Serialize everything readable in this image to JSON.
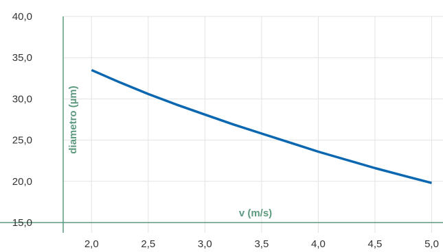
{
  "chart_data": {
    "type": "line",
    "xlabel": "v (m/s)",
    "ylabel": "diametro (µm)",
    "xlim": [
      1.75,
      5.1
    ],
    "ylim": [
      15,
      40
    ],
    "x_ticks": [
      "2,0",
      "2,5",
      "3,0",
      "3,5",
      "4,0",
      "4,5",
      "5,0"
    ],
    "y_ticks": [
      "15,0",
      "20,0",
      "25,0",
      "30,0",
      "35,0",
      "40,0"
    ],
    "grid": true,
    "line_color": "#0a67b0",
    "axis_color": "#5d9a7f",
    "series": [
      {
        "x": [
          2.0,
          2.25,
          2.5,
          2.75,
          3.0,
          3.25,
          3.5,
          3.75,
          4.0,
          4.25,
          4.5,
          4.75,
          5.0
        ],
        "y": [
          33.5,
          32.0,
          30.6,
          29.3,
          28.1,
          26.9,
          25.8,
          24.7,
          23.6,
          22.6,
          21.6,
          20.7,
          19.8
        ]
      }
    ]
  }
}
